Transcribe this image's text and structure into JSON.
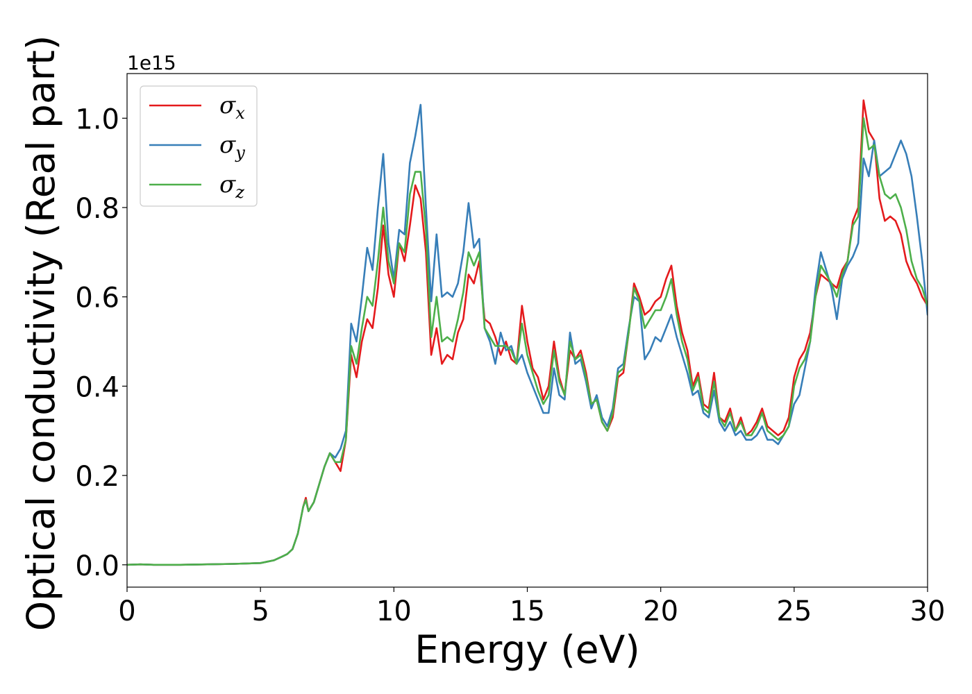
{
  "chart_data": {
    "type": "line",
    "xlabel": "Energy (eV)",
    "ylabel": "Optical conductivity (Real part)",
    "y_offset_text": "1e15",
    "xlim": [
      0,
      30
    ],
    "ylim": [
      -0.05,
      1.1
    ],
    "xticks": [
      0,
      5,
      10,
      15,
      20,
      25,
      30
    ],
    "xtick_labels": [
      "0",
      "5",
      "10",
      "15",
      "20",
      "25",
      "30"
    ],
    "yticks": [
      0.0,
      0.2,
      0.4,
      0.6,
      0.8,
      1.0
    ],
    "ytick_labels": [
      "0.0",
      "0.2",
      "0.4",
      "0.6",
      "0.8",
      "1.0"
    ],
    "grid": false,
    "legend_position": "top-left",
    "series": [
      {
        "name": "σx",
        "symbol": "σ",
        "subscript": "x",
        "color": "#e41a1c",
        "x": [
          0,
          0.5,
          1,
          2,
          3,
          4,
          5,
          5.5,
          5.8,
          6.0,
          6.2,
          6.4,
          6.6,
          6.7,
          6.8,
          7.0,
          7.2,
          7.4,
          7.6,
          7.8,
          8.0,
          8.2,
          8.4,
          8.6,
          8.8,
          9.0,
          9.2,
          9.4,
          9.6,
          9.8,
          10.0,
          10.2,
          10.4,
          10.6,
          10.8,
          11.0,
          11.2,
          11.4,
          11.6,
          11.8,
          12.0,
          12.2,
          12.4,
          12.6,
          12.8,
          13.0,
          13.2,
          13.4,
          13.6,
          13.8,
          14.0,
          14.2,
          14.4,
          14.6,
          14.8,
          15.0,
          15.2,
          15.4,
          15.6,
          15.8,
          16.0,
          16.2,
          16.4,
          16.6,
          16.8,
          17.0,
          17.2,
          17.4,
          17.6,
          17.8,
          18.0,
          18.2,
          18.4,
          18.6,
          18.8,
          19.0,
          19.2,
          19.4,
          19.6,
          19.8,
          20.0,
          20.2,
          20.4,
          20.6,
          20.8,
          21.0,
          21.2,
          21.4,
          21.6,
          21.8,
          22.0,
          22.2,
          22.4,
          22.6,
          22.8,
          23.0,
          23.2,
          23.4,
          23.6,
          23.8,
          24.0,
          24.2,
          24.4,
          24.6,
          24.8,
          25.0,
          25.2,
          25.4,
          25.6,
          25.8,
          26.0,
          26.2,
          26.4,
          26.6,
          26.8,
          27.0,
          27.2,
          27.4,
          27.6,
          27.8,
          28.0,
          28.2,
          28.4,
          28.6,
          28.8,
          29.0,
          29.2,
          29.4,
          29.6,
          29.8,
          30.0
        ],
        "y": [
          0.0,
          0.001,
          0.0,
          0.0,
          0.001,
          0.002,
          0.004,
          0.01,
          0.018,
          0.024,
          0.035,
          0.07,
          0.13,
          0.15,
          0.12,
          0.14,
          0.18,
          0.22,
          0.25,
          0.23,
          0.21,
          0.28,
          0.47,
          0.42,
          0.5,
          0.55,
          0.53,
          0.62,
          0.76,
          0.65,
          0.6,
          0.72,
          0.68,
          0.76,
          0.85,
          0.82,
          0.7,
          0.47,
          0.53,
          0.45,
          0.47,
          0.46,
          0.52,
          0.55,
          0.65,
          0.63,
          0.68,
          0.55,
          0.54,
          0.51,
          0.47,
          0.5,
          0.46,
          0.45,
          0.58,
          0.5,
          0.44,
          0.42,
          0.37,
          0.4,
          0.5,
          0.42,
          0.38,
          0.48,
          0.46,
          0.48,
          0.43,
          0.36,
          0.37,
          0.32,
          0.3,
          0.33,
          0.42,
          0.43,
          0.52,
          0.63,
          0.6,
          0.56,
          0.57,
          0.59,
          0.6,
          0.64,
          0.67,
          0.58,
          0.52,
          0.48,
          0.4,
          0.43,
          0.36,
          0.35,
          0.43,
          0.33,
          0.32,
          0.35,
          0.3,
          0.33,
          0.29,
          0.3,
          0.32,
          0.35,
          0.31,
          0.3,
          0.29,
          0.3,
          0.33,
          0.42,
          0.46,
          0.48,
          0.52,
          0.6,
          0.65,
          0.64,
          0.63,
          0.62,
          0.66,
          0.68,
          0.77,
          0.8,
          1.04,
          0.97,
          0.95,
          0.82,
          0.77,
          0.78,
          0.77,
          0.74,
          0.68,
          0.65,
          0.63,
          0.6,
          0.58
        ]
      },
      {
        "name": "σy",
        "symbol": "σ",
        "subscript": "y",
        "color": "#377eb8",
        "x": [
          0,
          0.5,
          1,
          2,
          3,
          4,
          5,
          5.5,
          5.8,
          6.0,
          6.2,
          6.4,
          6.6,
          6.7,
          6.8,
          7.0,
          7.2,
          7.4,
          7.6,
          7.8,
          8.0,
          8.2,
          8.4,
          8.6,
          8.8,
          9.0,
          9.2,
          9.4,
          9.6,
          9.8,
          10.0,
          10.2,
          10.4,
          10.6,
          10.8,
          11.0,
          11.2,
          11.4,
          11.6,
          11.8,
          12.0,
          12.2,
          12.4,
          12.6,
          12.8,
          13.0,
          13.2,
          13.4,
          13.6,
          13.8,
          14.0,
          14.2,
          14.4,
          14.6,
          14.8,
          15.0,
          15.2,
          15.4,
          15.6,
          15.8,
          16.0,
          16.2,
          16.4,
          16.6,
          16.8,
          17.0,
          17.2,
          17.4,
          17.6,
          17.8,
          18.0,
          18.2,
          18.4,
          18.6,
          18.8,
          19.0,
          19.2,
          19.4,
          19.6,
          19.8,
          20.0,
          20.2,
          20.4,
          20.6,
          20.8,
          21.0,
          21.2,
          21.4,
          21.6,
          21.8,
          22.0,
          22.2,
          22.4,
          22.6,
          22.8,
          23.0,
          23.2,
          23.4,
          23.6,
          23.8,
          24.0,
          24.2,
          24.4,
          24.6,
          24.8,
          25.0,
          25.2,
          25.4,
          25.6,
          25.8,
          26.0,
          26.2,
          26.4,
          26.6,
          26.8,
          27.0,
          27.2,
          27.4,
          27.6,
          27.8,
          28.0,
          28.2,
          28.4,
          28.6,
          28.8,
          29.0,
          29.2,
          29.4,
          29.6,
          29.8,
          30.0
        ],
        "y": [
          0.0,
          0.001,
          0.0,
          0.0,
          0.001,
          0.002,
          0.004,
          0.01,
          0.018,
          0.024,
          0.035,
          0.07,
          0.13,
          0.145,
          0.12,
          0.14,
          0.18,
          0.22,
          0.25,
          0.24,
          0.26,
          0.3,
          0.54,
          0.5,
          0.6,
          0.71,
          0.66,
          0.8,
          0.92,
          0.72,
          0.64,
          0.75,
          0.74,
          0.9,
          0.96,
          1.03,
          0.8,
          0.59,
          0.74,
          0.6,
          0.61,
          0.6,
          0.63,
          0.7,
          0.81,
          0.71,
          0.73,
          0.53,
          0.5,
          0.45,
          0.52,
          0.48,
          0.49,
          0.45,
          0.47,
          0.43,
          0.4,
          0.37,
          0.34,
          0.34,
          0.44,
          0.38,
          0.37,
          0.52,
          0.45,
          0.46,
          0.41,
          0.35,
          0.38,
          0.33,
          0.31,
          0.35,
          0.44,
          0.45,
          0.53,
          0.6,
          0.59,
          0.46,
          0.48,
          0.51,
          0.5,
          0.53,
          0.56,
          0.51,
          0.47,
          0.43,
          0.38,
          0.39,
          0.34,
          0.33,
          0.39,
          0.32,
          0.3,
          0.32,
          0.29,
          0.3,
          0.28,
          0.28,
          0.29,
          0.31,
          0.28,
          0.28,
          0.27,
          0.29,
          0.31,
          0.36,
          0.38,
          0.44,
          0.5,
          0.62,
          0.7,
          0.66,
          0.62,
          0.55,
          0.64,
          0.67,
          0.69,
          0.72,
          0.91,
          0.87,
          0.95,
          0.87,
          0.88,
          0.89,
          0.92,
          0.95,
          0.92,
          0.87,
          0.78,
          0.68,
          0.56
        ]
      },
      {
        "name": "σz",
        "symbol": "σ",
        "subscript": "z",
        "color": "#4daf4a",
        "x": [
          0,
          0.5,
          1,
          2,
          3,
          4,
          5,
          5.5,
          5.8,
          6.0,
          6.2,
          6.4,
          6.6,
          6.7,
          6.8,
          7.0,
          7.2,
          7.4,
          7.6,
          7.8,
          8.0,
          8.2,
          8.4,
          8.6,
          8.8,
          9.0,
          9.2,
          9.4,
          9.6,
          9.8,
          10.0,
          10.2,
          10.4,
          10.6,
          10.8,
          11.0,
          11.2,
          11.4,
          11.6,
          11.8,
          12.0,
          12.2,
          12.4,
          12.6,
          12.8,
          13.0,
          13.2,
          13.4,
          13.6,
          13.8,
          14.0,
          14.2,
          14.4,
          14.6,
          14.8,
          15.0,
          15.2,
          15.4,
          15.6,
          15.8,
          16.0,
          16.2,
          16.4,
          16.6,
          16.8,
          17.0,
          17.2,
          17.4,
          17.6,
          17.8,
          18.0,
          18.2,
          18.4,
          18.6,
          18.8,
          19.0,
          19.2,
          19.4,
          19.6,
          19.8,
          20.0,
          20.2,
          20.4,
          20.6,
          20.8,
          21.0,
          21.2,
          21.4,
          21.6,
          21.8,
          22.0,
          22.2,
          22.4,
          22.6,
          22.8,
          23.0,
          23.2,
          23.4,
          23.6,
          23.8,
          24.0,
          24.2,
          24.4,
          24.6,
          24.8,
          25.0,
          25.2,
          25.4,
          25.6,
          25.8,
          26.0,
          26.2,
          26.4,
          26.6,
          26.8,
          27.0,
          27.2,
          27.4,
          27.6,
          27.8,
          28.0,
          28.2,
          28.4,
          28.6,
          28.8,
          29.0,
          29.2,
          29.4,
          29.6,
          29.8,
          30.0
        ],
        "y": [
          0.0,
          0.001,
          0.0,
          0.0,
          0.001,
          0.002,
          0.004,
          0.01,
          0.018,
          0.024,
          0.035,
          0.07,
          0.13,
          0.145,
          0.12,
          0.14,
          0.18,
          0.22,
          0.25,
          0.23,
          0.23,
          0.28,
          0.49,
          0.45,
          0.53,
          0.6,
          0.58,
          0.68,
          0.8,
          0.68,
          0.63,
          0.72,
          0.7,
          0.83,
          0.88,
          0.88,
          0.75,
          0.51,
          0.6,
          0.5,
          0.51,
          0.5,
          0.55,
          0.61,
          0.7,
          0.67,
          0.7,
          0.53,
          0.51,
          0.49,
          0.49,
          0.49,
          0.48,
          0.45,
          0.54,
          0.47,
          0.43,
          0.39,
          0.36,
          0.38,
          0.48,
          0.41,
          0.38,
          0.5,
          0.46,
          0.47,
          0.42,
          0.36,
          0.37,
          0.32,
          0.3,
          0.34,
          0.43,
          0.44,
          0.52,
          0.62,
          0.59,
          0.53,
          0.55,
          0.57,
          0.57,
          0.6,
          0.64,
          0.56,
          0.5,
          0.46,
          0.39,
          0.42,
          0.35,
          0.34,
          0.41,
          0.33,
          0.31,
          0.34,
          0.3,
          0.32,
          0.29,
          0.29,
          0.31,
          0.34,
          0.3,
          0.29,
          0.28,
          0.29,
          0.31,
          0.4,
          0.44,
          0.46,
          0.5,
          0.6,
          0.67,
          0.65,
          0.63,
          0.6,
          0.65,
          0.68,
          0.76,
          0.78,
          1.0,
          0.93,
          0.94,
          0.87,
          0.83,
          0.82,
          0.83,
          0.8,
          0.75,
          0.68,
          0.64,
          0.62,
          0.58
        ]
      }
    ]
  }
}
